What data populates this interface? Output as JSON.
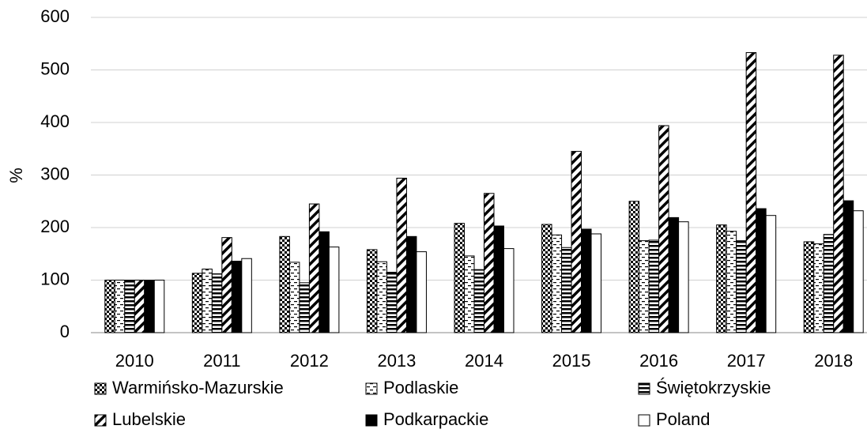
{
  "chart_data": {
    "type": "bar",
    "y_label": "%",
    "categories": [
      "2010",
      "2011",
      "2012",
      "2013",
      "2014",
      "2015",
      "2016",
      "2017",
      "2018"
    ],
    "series": [
      {
        "name": "Warmińsko-Mazurskie",
        "color": "#000000",
        "pattern": "checker",
        "values": [
          100,
          113,
          183,
          158,
          208,
          206,
          250,
          205,
          173
        ]
      },
      {
        "name": "Podlaskie",
        "color": "#000000",
        "pattern": "dash",
        "values": [
          100,
          121,
          134,
          135,
          146,
          186,
          175,
          193,
          169
        ]
      },
      {
        "name": "Świętokrzyskie",
        "color": "#000000",
        "pattern": "horizontal",
        "values": [
          100,
          112,
          95,
          115,
          120,
          162,
          176,
          175,
          187
        ]
      },
      {
        "name": "Lubelskie",
        "color": "#000000",
        "pattern": "diagonal",
        "values": [
          100,
          181,
          245,
          294,
          265,
          345,
          394,
          533,
          528
        ]
      },
      {
        "name": "Podkarpackie",
        "color": "#000000",
        "pattern": "solid",
        "values": [
          100,
          136,
          192,
          183,
          203,
          197,
          219,
          236,
          251
        ]
      },
      {
        "name": "Poland",
        "color": "#000000",
        "pattern": "none",
        "values": [
          100,
          141,
          163,
          154,
          160,
          188,
          211,
          223,
          232
        ]
      }
    ],
    "ylim": [
      0,
      600
    ],
    "yticks": [
      0,
      100,
      200,
      300,
      400,
      500,
      600
    ],
    "grid": true
  }
}
